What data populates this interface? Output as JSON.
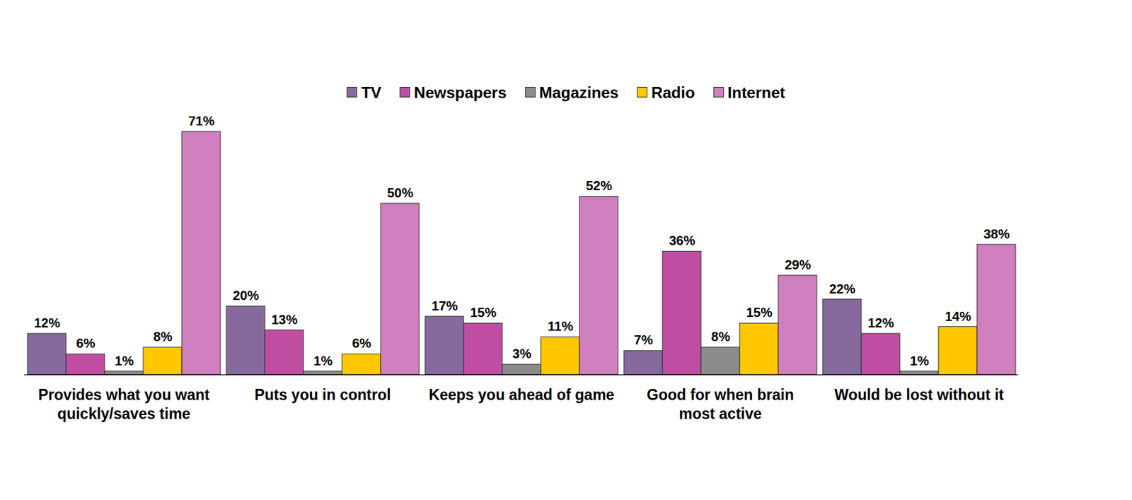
{
  "chart_data": {
    "type": "bar",
    "categories": [
      "Provides what you want quickly/saves time",
      "Puts you in control",
      "Keeps you ahead of game",
      "Good for when brain most active",
      "Would be lost without it"
    ],
    "series": [
      {
        "name": "TV",
        "color": "#866a9e",
        "values": [
          12,
          20,
          17,
          7,
          22
        ],
        "value_labels": [
          "12%",
          "20%",
          "17%",
          "7%",
          "22%"
        ]
      },
      {
        "name": "Newspapers",
        "color": "#bf4ea3",
        "values": [
          6,
          13,
          15,
          36,
          12
        ],
        "value_labels": [
          "6%",
          "13%",
          "15%",
          "36%",
          "12%"
        ]
      },
      {
        "name": "Magazines",
        "color": "#8c8c8c",
        "values": [
          1,
          1,
          3,
          8,
          1
        ],
        "value_labels": [
          "1%",
          "1%",
          "3%",
          "8%",
          "1%"
        ]
      },
      {
        "name": "Radio",
        "color": "#ffc800",
        "values": [
          8,
          6,
          11,
          15,
          14
        ],
        "value_labels": [
          "8%",
          "6%",
          "11%",
          "15%",
          "14%"
        ]
      },
      {
        "name": "Internet",
        "color": "#d07fbf",
        "values": [
          71,
          50,
          52,
          29,
          38
        ],
        "value_labels": [
          "71%",
          "50%",
          "52%",
          "29%",
          "38%"
        ]
      }
    ],
    "ylim": [
      0,
      75
    ],
    "grid": false,
    "legend": "top",
    "data_labels": true,
    "tick_labels": "x"
  }
}
